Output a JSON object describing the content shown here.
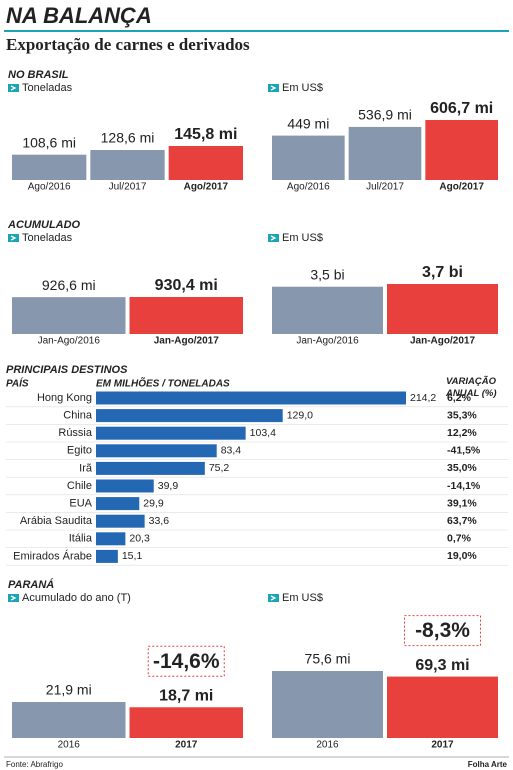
{
  "header": {
    "title": "NA BALANÇA",
    "subtitle": "Exportação de carnes e derivados"
  },
  "chart_data": [
    {
      "type": "bar",
      "section": "NO BRASIL",
      "subtitle": "Toneladas",
      "categories": [
        "Ago/2016",
        "Jul/2017",
        "Ago/2017"
      ],
      "values": [
        108.6,
        128.6,
        145.8
      ],
      "value_labels": [
        "108,6 mi",
        "128,6 mi",
        "145,8 mi"
      ],
      "colors": [
        "#8798ae",
        "#8798ae",
        "#e8403c"
      ]
    },
    {
      "type": "bar",
      "subtitle": "Em US$",
      "categories": [
        "Ago/2016",
        "Jul/2017",
        "Ago/2017"
      ],
      "values": [
        449,
        536.9,
        606.7
      ],
      "value_labels": [
        "449 mi",
        "536,9 mi",
        "606,7 mi"
      ],
      "colors": [
        "#8798ae",
        "#8798ae",
        "#e8403c"
      ]
    },
    {
      "type": "bar",
      "section": "ACUMULADO",
      "subtitle": "Toneladas",
      "categories": [
        "Jan-Ago/2016",
        "Jan-Ago/2017"
      ],
      "values": [
        926.6,
        930.4
      ],
      "value_labels": [
        "926,6 mi",
        "930,4 mi"
      ],
      "colors": [
        "#8798ae",
        "#e8403c"
      ]
    },
    {
      "type": "bar",
      "subtitle": "Em US$",
      "categories": [
        "Jan-Ago/2016",
        "Jan-Ago/2017"
      ],
      "values": [
        3.5,
        3.7
      ],
      "value_labels": [
        "3,5 bi",
        "3,7 bi"
      ],
      "colors": [
        "#8798ae",
        "#e8403c"
      ]
    },
    {
      "type": "hbar",
      "section": "PRINCIPAIS DESTINOS",
      "category_title": "PAÍS",
      "value_title": "EM MILHÕES / TONELADAS",
      "variation_title": "VARIAÇÃO ANUAL (%)",
      "categories": [
        "Hong Kong",
        "China",
        "Rússia",
        "Egito",
        "Irã",
        "Chile",
        "EUA",
        "Arábia Saudita",
        "Itália",
        "Emirados Árabe"
      ],
      "values": [
        214.2,
        129.0,
        103.4,
        83.4,
        75.2,
        39.9,
        29.9,
        33.6,
        20.3,
        15.1
      ],
      "value_labels": [
        "214,2",
        "129,0",
        "103,4",
        "83,4",
        "75,2",
        "39,9",
        "29,9",
        "33,6",
        "20,3",
        "15,1"
      ],
      "variation": [
        "6,2%",
        "35,3%",
        "12,2%",
        "-41,5%",
        "35,0%",
        "-14,1%",
        "39,1%",
        "63,7%",
        "0,7%",
        "19,0%"
      ],
      "color": "#2468b4"
    },
    {
      "type": "bar",
      "section": "PARANÁ",
      "subtitle": "Acumulado do ano (T)",
      "categories": [
        "2016",
        "2017"
      ],
      "values": [
        21.9,
        18.7
      ],
      "value_labels": [
        "21,9 mi",
        "18,7 mi"
      ],
      "colors": [
        "#8798ae",
        "#e8403c"
      ],
      "annotation": "-14,6%"
    },
    {
      "type": "bar",
      "subtitle": "Em US$",
      "categories": [
        "2016",
        "2017"
      ],
      "values": [
        75.6,
        69.3
      ],
      "value_labels": [
        "75,6 mi",
        "69,3 mi"
      ],
      "colors": [
        "#8798ae",
        "#e8403c"
      ],
      "annotation": "-8,3%"
    }
  ],
  "footer": {
    "source": "Fonte: Abrafrigo",
    "credit": "Folha Arte"
  }
}
